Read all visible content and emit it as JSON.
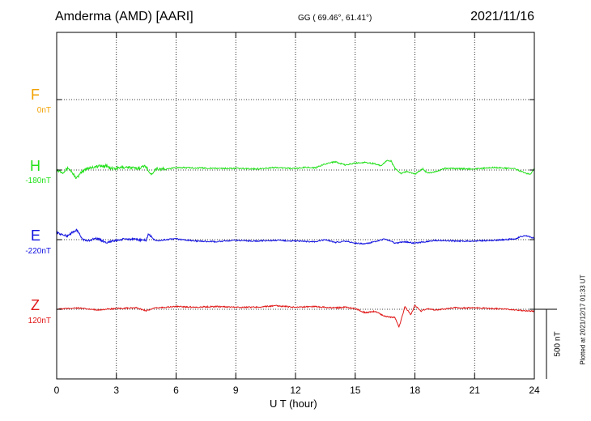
{
  "header": {
    "station": "Amderma (AMD)  [AARI]",
    "coords": "GG ( 69.46°,  61.41°)",
    "date": "2021/11/16"
  },
  "colors": {
    "F": "#f2a100",
    "H": "#22e01a",
    "E": "#1010e0",
    "Z": "#e01818",
    "axis": "#000000"
  },
  "side_note": "Plotted at 2021/12/17 01:33 UT",
  "chart_data": {
    "type": "line",
    "xlabel": "U T (hour)",
    "xlim": [
      0,
      24
    ],
    "x_ticks": [
      "0",
      "3",
      "6",
      "9",
      "12",
      "15",
      "18",
      "21",
      "24"
    ],
    "grid": true,
    "scale_bar": {
      "label": "500 nT",
      "value_nT": 500
    },
    "series": [
      {
        "name": "F",
        "baseline_label": "0nT",
        "baseline_nT": 0,
        "points": []
      },
      {
        "name": "H",
        "baseline_label": "-180nT",
        "baseline_nT": -180,
        "points": [
          [
            0,
            0
          ],
          [
            0.3,
            -15
          ],
          [
            0.6,
            15
          ],
          [
            1,
            -60
          ],
          [
            1.2,
            -25
          ],
          [
            1.5,
            12
          ],
          [
            2,
            25
          ],
          [
            2.5,
            32
          ],
          [
            2.7,
            10
          ],
          [
            3,
            12
          ],
          [
            3.5,
            22
          ],
          [
            4,
            10
          ],
          [
            4.5,
            30
          ],
          [
            4.7,
            -35
          ],
          [
            5,
            10
          ],
          [
            5.5,
            5
          ],
          [
            6,
            18
          ],
          [
            7,
            15
          ],
          [
            8,
            12
          ],
          [
            9,
            12
          ],
          [
            10,
            8
          ],
          [
            11,
            18
          ],
          [
            12,
            10
          ],
          [
            12.5,
            20
          ],
          [
            13,
            15
          ],
          [
            13.5,
            45
          ],
          [
            14,
            60
          ],
          [
            14.5,
            35
          ],
          [
            15,
            50
          ],
          [
            15.5,
            55
          ],
          [
            16,
            45
          ],
          [
            16.3,
            30
          ],
          [
            16.6,
            70
          ],
          [
            16.8,
            65
          ],
          [
            17,
            10
          ],
          [
            17.3,
            -25
          ],
          [
            17.6,
            -10
          ],
          [
            18,
            -30
          ],
          [
            18.4,
            10
          ],
          [
            18.6,
            -20
          ],
          [
            19,
            -15
          ],
          [
            19.5,
            12
          ],
          [
            20,
            10
          ],
          [
            21,
            8
          ],
          [
            22,
            18
          ],
          [
            23,
            10
          ],
          [
            23.5,
            -20
          ],
          [
            23.8,
            -30
          ],
          [
            24,
            15
          ]
        ]
      },
      {
        "name": "E",
        "baseline_label": "-220nT",
        "baseline_nT": -220,
        "points": [
          [
            0,
            50
          ],
          [
            0.5,
            25
          ],
          [
            1,
            70
          ],
          [
            1.3,
            5
          ],
          [
            1.5,
            -10
          ],
          [
            2,
            10
          ],
          [
            2.5,
            -20
          ],
          [
            3,
            -5
          ],
          [
            3.5,
            5
          ],
          [
            4,
            0
          ],
          [
            4.5,
            -5
          ],
          [
            4.6,
            40
          ],
          [
            5,
            -10
          ],
          [
            5.5,
            0
          ],
          [
            6,
            5
          ],
          [
            7,
            -10
          ],
          [
            8,
            -15
          ],
          [
            9,
            -5
          ],
          [
            10,
            -10
          ],
          [
            11,
            -5
          ],
          [
            12,
            -10
          ],
          [
            13,
            -15
          ],
          [
            13.5,
            0
          ],
          [
            14,
            -20
          ],
          [
            14.5,
            -10
          ],
          [
            15,
            -25
          ],
          [
            15.5,
            -30
          ],
          [
            16,
            -15
          ],
          [
            16.5,
            5
          ],
          [
            17,
            -25
          ],
          [
            17.5,
            -15
          ],
          [
            18,
            -25
          ],
          [
            19,
            -5
          ],
          [
            20,
            -10
          ],
          [
            21,
            -10
          ],
          [
            22,
            -5
          ],
          [
            23,
            5
          ],
          [
            23.5,
            30
          ],
          [
            24,
            10
          ]
        ]
      },
      {
        "name": "Z",
        "baseline_label": "120nT",
        "baseline_nT": 120,
        "points": [
          [
            0,
            0
          ],
          [
            0.5,
            5
          ],
          [
            1,
            10
          ],
          [
            2,
            -5
          ],
          [
            3,
            5
          ],
          [
            4,
            10
          ],
          [
            4.5,
            -10
          ],
          [
            5,
            10
          ],
          [
            6,
            20
          ],
          [
            7,
            15
          ],
          [
            8,
            20
          ],
          [
            9,
            15
          ],
          [
            10,
            15
          ],
          [
            11,
            25
          ],
          [
            12,
            15
          ],
          [
            13,
            20
          ],
          [
            13.5,
            15
          ],
          [
            14,
            10
          ],
          [
            14.5,
            15
          ],
          [
            15,
            5
          ],
          [
            15.5,
            -25
          ],
          [
            16,
            -15
          ],
          [
            16.5,
            -50
          ],
          [
            17,
            -60
          ],
          [
            17.2,
            -130
          ],
          [
            17.5,
            20
          ],
          [
            17.8,
            -40
          ],
          [
            18,
            30
          ],
          [
            18.3,
            -15
          ],
          [
            18.6,
            5
          ],
          [
            19,
            -5
          ],
          [
            20,
            10
          ],
          [
            21,
            10
          ],
          [
            22,
            5
          ],
          [
            23,
            -5
          ],
          [
            24,
            -15
          ]
        ]
      }
    ]
  }
}
